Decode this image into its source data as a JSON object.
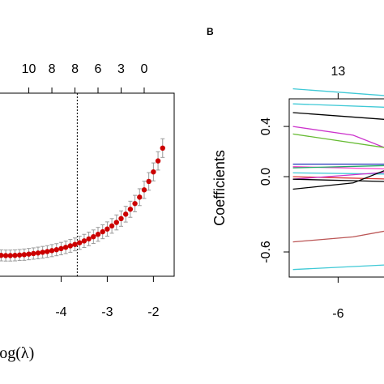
{
  "panel_b": {
    "label": "B"
  },
  "chart_data": [
    {
      "type": "scatter",
      "panel": "A",
      "xlabel": "Log(λ)",
      "ylabel": "",
      "x_ticks": [
        -4,
        -3,
        -2
      ],
      "top_ticks": [
        {
          "x": -4.7,
          "label": "10"
        },
        {
          "x": -4.2,
          "label": "8"
        },
        {
          "x": -3.7,
          "label": "8"
        },
        {
          "x": -3.2,
          "label": "6"
        },
        {
          "x": -2.7,
          "label": "3"
        },
        {
          "x": -2.2,
          "label": "0"
        }
      ],
      "vline_x": -3.65,
      "xlim": [
        -5.5,
        -1.55
      ],
      "ylim": [
        0.0,
        1.0
      ],
      "grid": false,
      "x": [
        -5.4,
        -5.3,
        -5.2,
        -5.1,
        -5.0,
        -4.9,
        -4.8,
        -4.7,
        -4.6,
        -4.5,
        -4.4,
        -4.3,
        -4.2,
        -4.1,
        -4.0,
        -3.9,
        -3.8,
        -3.7,
        -3.6,
        -3.5,
        -3.4,
        -3.3,
        -3.2,
        -3.1,
        -3.0,
        -2.9,
        -2.8,
        -2.7,
        -2.6,
        -2.5,
        -2.4,
        -2.3,
        -2.2,
        -2.1,
        -2.0,
        -1.9,
        -1.8
      ],
      "y": [
        0.116,
        0.114,
        0.113,
        0.113,
        0.114,
        0.116,
        0.118,
        0.121,
        0.124,
        0.127,
        0.131,
        0.135,
        0.14,
        0.145,
        0.151,
        0.158,
        0.166,
        0.174,
        0.183,
        0.193,
        0.204,
        0.216,
        0.229,
        0.243,
        0.258,
        0.275,
        0.294,
        0.315,
        0.339,
        0.366,
        0.397,
        0.432,
        0.472,
        0.518,
        0.57,
        0.63,
        0.7
      ],
      "err": [
        0.03,
        0.03,
        0.03,
        0.03,
        0.03,
        0.03,
        0.031,
        0.031,
        0.031,
        0.032,
        0.032,
        0.032,
        0.033,
        0.033,
        0.034,
        0.034,
        0.035,
        0.035,
        0.036,
        0.036,
        0.037,
        0.037,
        0.038,
        0.038,
        0.039,
        0.04,
        0.041,
        0.042,
        0.043,
        0.044,
        0.045,
        0.046,
        0.047,
        0.048,
        0.049,
        0.05,
        0.051
      ],
      "point_color": "#cc0000",
      "errbar_color": "#999999"
    },
    {
      "type": "line",
      "panel": "B",
      "ylabel": "Coefficients",
      "xlabel": "",
      "x_ticks": [
        -6
      ],
      "y_ticks": [
        -0.6,
        0.0,
        0.4
      ],
      "top_ticks": [
        {
          "x": -6,
          "label": "13"
        }
      ],
      "xlim": [
        -7.3,
        -4.5
      ],
      "ylim": [
        -0.8,
        0.62
      ],
      "grid": false,
      "series": [
        {
          "color": "#3fc9d6",
          "points": [
            [
              -7.2,
              0.7
            ],
            [
              -4.5,
              0.64
            ]
          ]
        },
        {
          "color": "#3fc9d6",
          "points": [
            [
              -7.2,
              0.58
            ],
            [
              -4.5,
              0.55
            ]
          ]
        },
        {
          "color": "#000000",
          "points": [
            [
              -7.2,
              0.51
            ],
            [
              -4.5,
              0.45
            ]
          ]
        },
        {
          "color": "#cc33cc",
          "points": [
            [
              -7.2,
              0.4
            ],
            [
              -5.6,
              0.33
            ],
            [
              -4.5,
              0.2
            ]
          ]
        },
        {
          "color": "#66bb33",
          "points": [
            [
              -7.2,
              0.34
            ],
            [
              -4.5,
              0.22
            ]
          ]
        },
        {
          "color": "#2233bb",
          "points": [
            [
              -7.2,
              0.1
            ],
            [
              -4.5,
              0.1
            ]
          ]
        },
        {
          "color": "#ff44cc",
          "points": [
            [
              -7.2,
              0.08
            ],
            [
              -4.5,
              0.06
            ]
          ]
        },
        {
          "color": "#22aa66",
          "points": [
            [
              -7.2,
              0.07
            ],
            [
              -4.5,
              0.09
            ]
          ]
        },
        {
          "color": "#3fc9d6",
          "points": [
            [
              -7.2,
              0.03
            ],
            [
              -4.5,
              0.02
            ]
          ]
        },
        {
          "color": "#dd3333",
          "points": [
            [
              -7.2,
              0.0
            ],
            [
              -4.5,
              -0.02
            ]
          ]
        },
        {
          "color": "#cc33cc",
          "points": [
            [
              -7.2,
              -0.02
            ],
            [
              -4.5,
              0.04
            ]
          ]
        },
        {
          "color": "#000000",
          "points": [
            [
              -7.2,
              -0.1
            ],
            [
              -5.6,
              -0.05
            ],
            [
              -4.5,
              0.08
            ]
          ]
        },
        {
          "color": "#000000",
          "points": [
            [
              -7.2,
              -0.02
            ],
            [
              -4.5,
              -0.04
            ]
          ]
        },
        {
          "color": "#bb5555",
          "points": [
            [
              -7.2,
              -0.52
            ],
            [
              -5.6,
              -0.48
            ],
            [
              -4.5,
              -0.42
            ]
          ]
        },
        {
          "color": "#3fc9d6",
          "points": [
            [
              -7.2,
              -0.74
            ],
            [
              -4.5,
              -0.7
            ]
          ]
        }
      ]
    }
  ]
}
